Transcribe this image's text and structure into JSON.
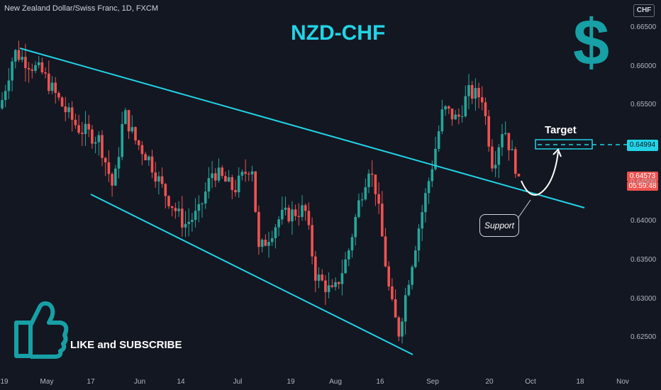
{
  "header": {
    "symbol": "New Zealand Dollar/Swiss Franc, 1D, FXCM",
    "title": "NZD-CHF",
    "currency_button": "CHF"
  },
  "decor": {
    "dollar_icon": "$",
    "thumbs_up_icon": "thumbs-up",
    "like_text": "LIKE and SUBSCRIBE",
    "accent_color": "#22d3e6",
    "up_color": "#26a69a",
    "down_color": "#ef5350"
  },
  "annotations": {
    "target_label": "Target",
    "support_label": "Support"
  },
  "price_labels": {
    "target": "0.64994",
    "last": "0.64573",
    "countdown": "05:59:48"
  },
  "chart_data": {
    "type": "candlestick",
    "y_axis": {
      "ticks": [
        "0.66500",
        "0.66000",
        "0.65500",
        "0.65000",
        "0.64500",
        "0.64000",
        "0.63500",
        "0.63000",
        "0.62500"
      ],
      "range": [
        0.6225,
        0.667
      ]
    },
    "x_axis": {
      "ticks": [
        "19",
        "May",
        "17",
        "Jun",
        "14",
        "Jul",
        "19",
        "Aug",
        "16",
        "Sep",
        "20",
        "Oct",
        "18",
        "Nov"
      ]
    },
    "anchors": [
      [
        0,
        0.6545
      ],
      [
        20,
        0.6618
      ],
      [
        60,
        0.659
      ],
      [
        90,
        0.6545
      ],
      [
        110,
        0.652
      ],
      [
        140,
        0.6505
      ],
      [
        160,
        0.644
      ],
      [
        175,
        0.654
      ],
      [
        190,
        0.6505
      ],
      [
        210,
        0.648
      ],
      [
        230,
        0.644
      ],
      [
        260,
        0.6395
      ],
      [
        280,
        0.641
      ],
      [
        300,
        0.6465
      ],
      [
        330,
        0.644
      ],
      [
        355,
        0.6475
      ],
      [
        365,
        0.636
      ],
      [
        395,
        0.6405
      ],
      [
        430,
        0.6415
      ],
      [
        445,
        0.633
      ],
      [
        470,
        0.6305
      ],
      [
        490,
        0.6355
      ],
      [
        505,
        0.642
      ],
      [
        520,
        0.647
      ],
      [
        530,
        0.644
      ],
      [
        550,
        0.63
      ],
      [
        562,
        0.6255
      ],
      [
        575,
        0.632
      ],
      [
        590,
        0.639
      ],
      [
        610,
        0.6475
      ],
      [
        625,
        0.6545
      ],
      [
        645,
        0.653
      ],
      [
        660,
        0.6565
      ],
      [
        680,
        0.656
      ],
      [
        695,
        0.647
      ],
      [
        710,
        0.6525
      ],
      [
        720,
        0.649
      ],
      [
        732,
        0.6457
      ]
    ],
    "close": 0.64573,
    "target_level": 0.64994,
    "trendlines": [
      {
        "name": "upper",
        "from": [
          "2021-04-19",
          0.663
        ],
        "to": [
          "2021-10-27",
          0.6417
        ]
      },
      {
        "name": "lower",
        "from": [
          "2021-05-31",
          0.6439
        ],
        "to": [
          "2021-08-26",
          0.6228
        ]
      }
    ]
  }
}
